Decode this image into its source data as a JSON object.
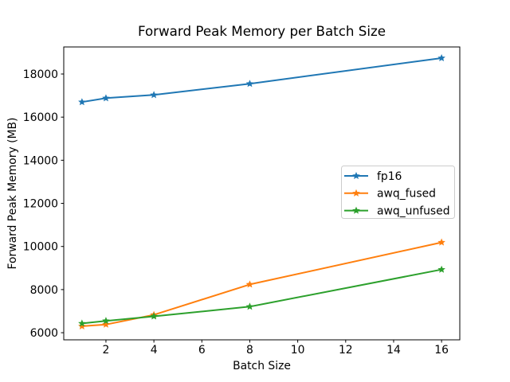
{
  "figure": {
    "background": "#ffffff",
    "spine_color": "#000000",
    "text_color": "#000000"
  },
  "chart_data": {
    "type": "line",
    "title": "Forward Peak Memory per Batch Size",
    "xlabel": "Batch Size",
    "ylabel": "Forward Peak Memory (MB)",
    "x": [
      1,
      2,
      4,
      8,
      16
    ],
    "series": [
      {
        "name": "fp16",
        "color": "#1f77b4",
        "marker": "star",
        "values": [
          16700,
          16880,
          17030,
          17550,
          18740
        ]
      },
      {
        "name": "awq_fused",
        "color": "#ff7f0e",
        "marker": "star",
        "values": [
          6300,
          6380,
          6830,
          8240,
          10190
        ]
      },
      {
        "name": "awq_unfused",
        "color": "#2ca02c",
        "marker": "star",
        "values": [
          6430,
          6550,
          6760,
          7210,
          8930
        ]
      }
    ],
    "xticks": [
      2,
      4,
      6,
      8,
      10,
      12,
      14,
      16
    ],
    "yticks": [
      6000,
      8000,
      10000,
      12000,
      14000,
      16000,
      18000
    ],
    "xlim": [
      0.24,
      16.76
    ],
    "ylim": [
      5670,
      19255
    ],
    "grid": false,
    "legend": {
      "position": "center right",
      "border_color": "#cccccc",
      "background": "#ffffff",
      "entries": [
        "fp16",
        "awq_fused",
        "awq_unfused"
      ]
    }
  }
}
